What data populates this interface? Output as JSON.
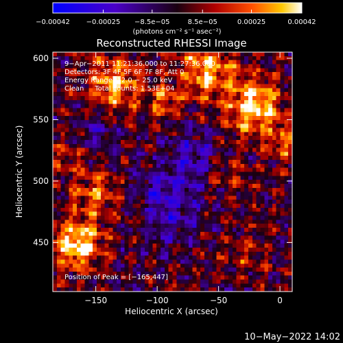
{
  "chart_data": {
    "type": "heatmap",
    "title": "Reconstructed RHESSI Image",
    "xlabel": "Heliocentric X (arcsec)",
    "ylabel": "Heliocentric Y (arcsec)",
    "xlim": [
      -185,
      10
    ],
    "ylim": [
      410,
      605
    ],
    "x_ticks": [
      -150,
      -100,
      -50,
      0
    ],
    "x_tick_labels": [
      "−150",
      "−100",
      "−50",
      "0"
    ],
    "y_ticks": [
      450,
      500,
      550,
      600
    ],
    "y_tick_labels": [
      "450",
      "500",
      "550",
      "600"
    ],
    "colorbar": {
      "range": [
        -0.00042,
        0.00042
      ],
      "ticks": [
        -0.00042,
        -0.00025,
        -8.5e-05,
        8.5e-05,
        0.00025,
        0.00042
      ],
      "tick_labels": [
        "−0.00042",
        "−0.00025",
        "−8.5e−05",
        "8.5e−05",
        "0.00025",
        "0.00042"
      ],
      "units_label": "(photons cm⁻² s⁻¹ asec⁻²)"
    },
    "annotations": [
      "9−Apr−2011 11:21:36.000 to 11:27:36.000",
      "Detectors: 3F 4F 5F 6F 7F 8F, Att 0",
      "Energy Range: 12.0 − 25.0 keV",
      "Clean     Total counts: 1.53E+04"
    ],
    "peak_label": "Position of Peak = [−165,447]",
    "peak_position": [
      -165,
      447
    ],
    "sources": [
      {
        "x": -165,
        "y": 448,
        "sigma": 14,
        "amp": 1.0
      },
      {
        "x": -150,
        "y": 490,
        "sigma": 14,
        "amp": 0.55
      },
      {
        "x": -135,
        "y": 580,
        "sigma": 16,
        "amp": 0.75
      },
      {
        "x": -95,
        "y": 565,
        "sigma": 10,
        "amp": 0.5
      },
      {
        "x": -60,
        "y": 590,
        "sigma": 16,
        "amp": 0.8
      },
      {
        "x": -20,
        "y": 560,
        "sigma": 16,
        "amp": 0.95
      },
      {
        "x": 5,
        "y": 530,
        "sigma": 10,
        "amp": 0.5
      },
      {
        "x": -45,
        "y": 505,
        "sigma": 12,
        "amp": 0.35
      },
      {
        "x": -30,
        "y": 440,
        "sigma": 12,
        "amp": 0.3
      },
      {
        "x": -115,
        "y": 470,
        "sigma": 10,
        "amp": 0.25
      },
      {
        "x": -175,
        "y": 520,
        "sigma": 10,
        "amp": 0.3
      }
    ],
    "negative_regions": [
      {
        "x": -95,
        "y": 480,
        "sigma": 20,
        "amp": -0.55
      },
      {
        "x": -70,
        "y": 520,
        "sigma": 16,
        "amp": -0.4
      },
      {
        "x": -150,
        "y": 540,
        "sigma": 12,
        "amp": -0.3
      }
    ]
  },
  "timestamp": "10−May−2022 14:02"
}
